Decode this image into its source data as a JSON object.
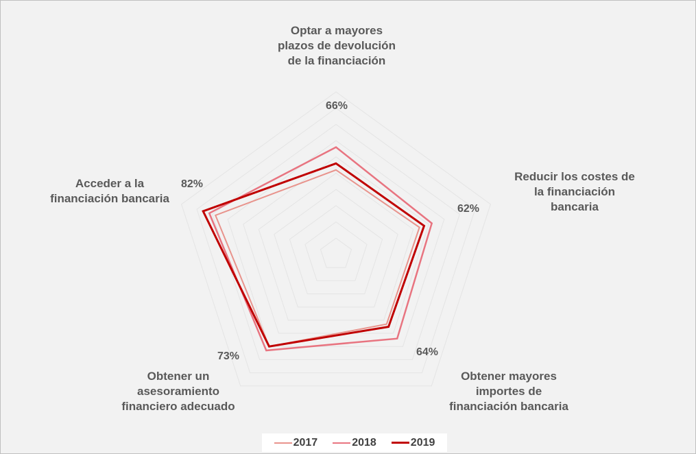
{
  "chart_data": {
    "type": "radar",
    "axes": [
      {
        "label_lines": [
          "Optar a mayores",
          "plazos de devolución",
          "de la financiación"
        ],
        "value_label": "66%"
      },
      {
        "label_lines": [
          "Reducir los costes de",
          "la financiación",
          "bancaria"
        ],
        "value_label": "62%"
      },
      {
        "label_lines": [
          "Obtener mayores",
          "importes de",
          "financiación bancaria"
        ],
        "value_label": "64%"
      },
      {
        "label_lines": [
          "Obtener un",
          "asesoramiento",
          "financiero adecuado"
        ],
        "value_label": "73%"
      },
      {
        "label_lines": [
          "Acceder a la",
          "financiación bancaria"
        ],
        "value_label": "82%"
      }
    ],
    "series": [
      {
        "name": "2017",
        "values": [
          52,
          54,
          53,
          70,
          78
        ],
        "color": "#e8938c",
        "width": 2
      },
      {
        "name": "2018",
        "values": [
          66,
          62,
          64,
          73,
          82
        ],
        "color": "#e87480",
        "width": 2.5
      },
      {
        "name": "2019",
        "values": [
          56,
          57,
          55,
          70,
          86
        ],
        "color": "#c00000",
        "width": 3
      }
    ],
    "scale": {
      "min": 0,
      "max": 100,
      "grid_rings": 10
    },
    "grid": true,
    "legend_position": "bottom"
  }
}
